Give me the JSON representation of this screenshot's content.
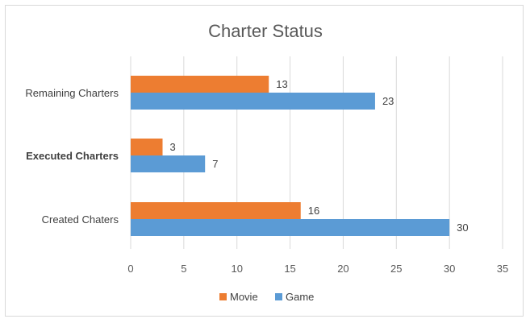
{
  "chart_data": {
    "type": "bar",
    "orientation": "horizontal",
    "title": "Charter Status",
    "categories": [
      "Remaining Charters",
      "Executed Charters",
      "Created Chaters"
    ],
    "series": [
      {
        "name": "Movie",
        "values": [
          13,
          3,
          16
        ],
        "color": "#ED7D31"
      },
      {
        "name": "Game",
        "values": [
          23,
          7,
          30
        ],
        "color": "#5B9BD5"
      }
    ],
    "xlim": [
      0,
      35
    ],
    "xticks": [
      0,
      5,
      10,
      15,
      20,
      25,
      30,
      35
    ],
    "grid": true,
    "legend": "bottom",
    "data_labels": true
  }
}
